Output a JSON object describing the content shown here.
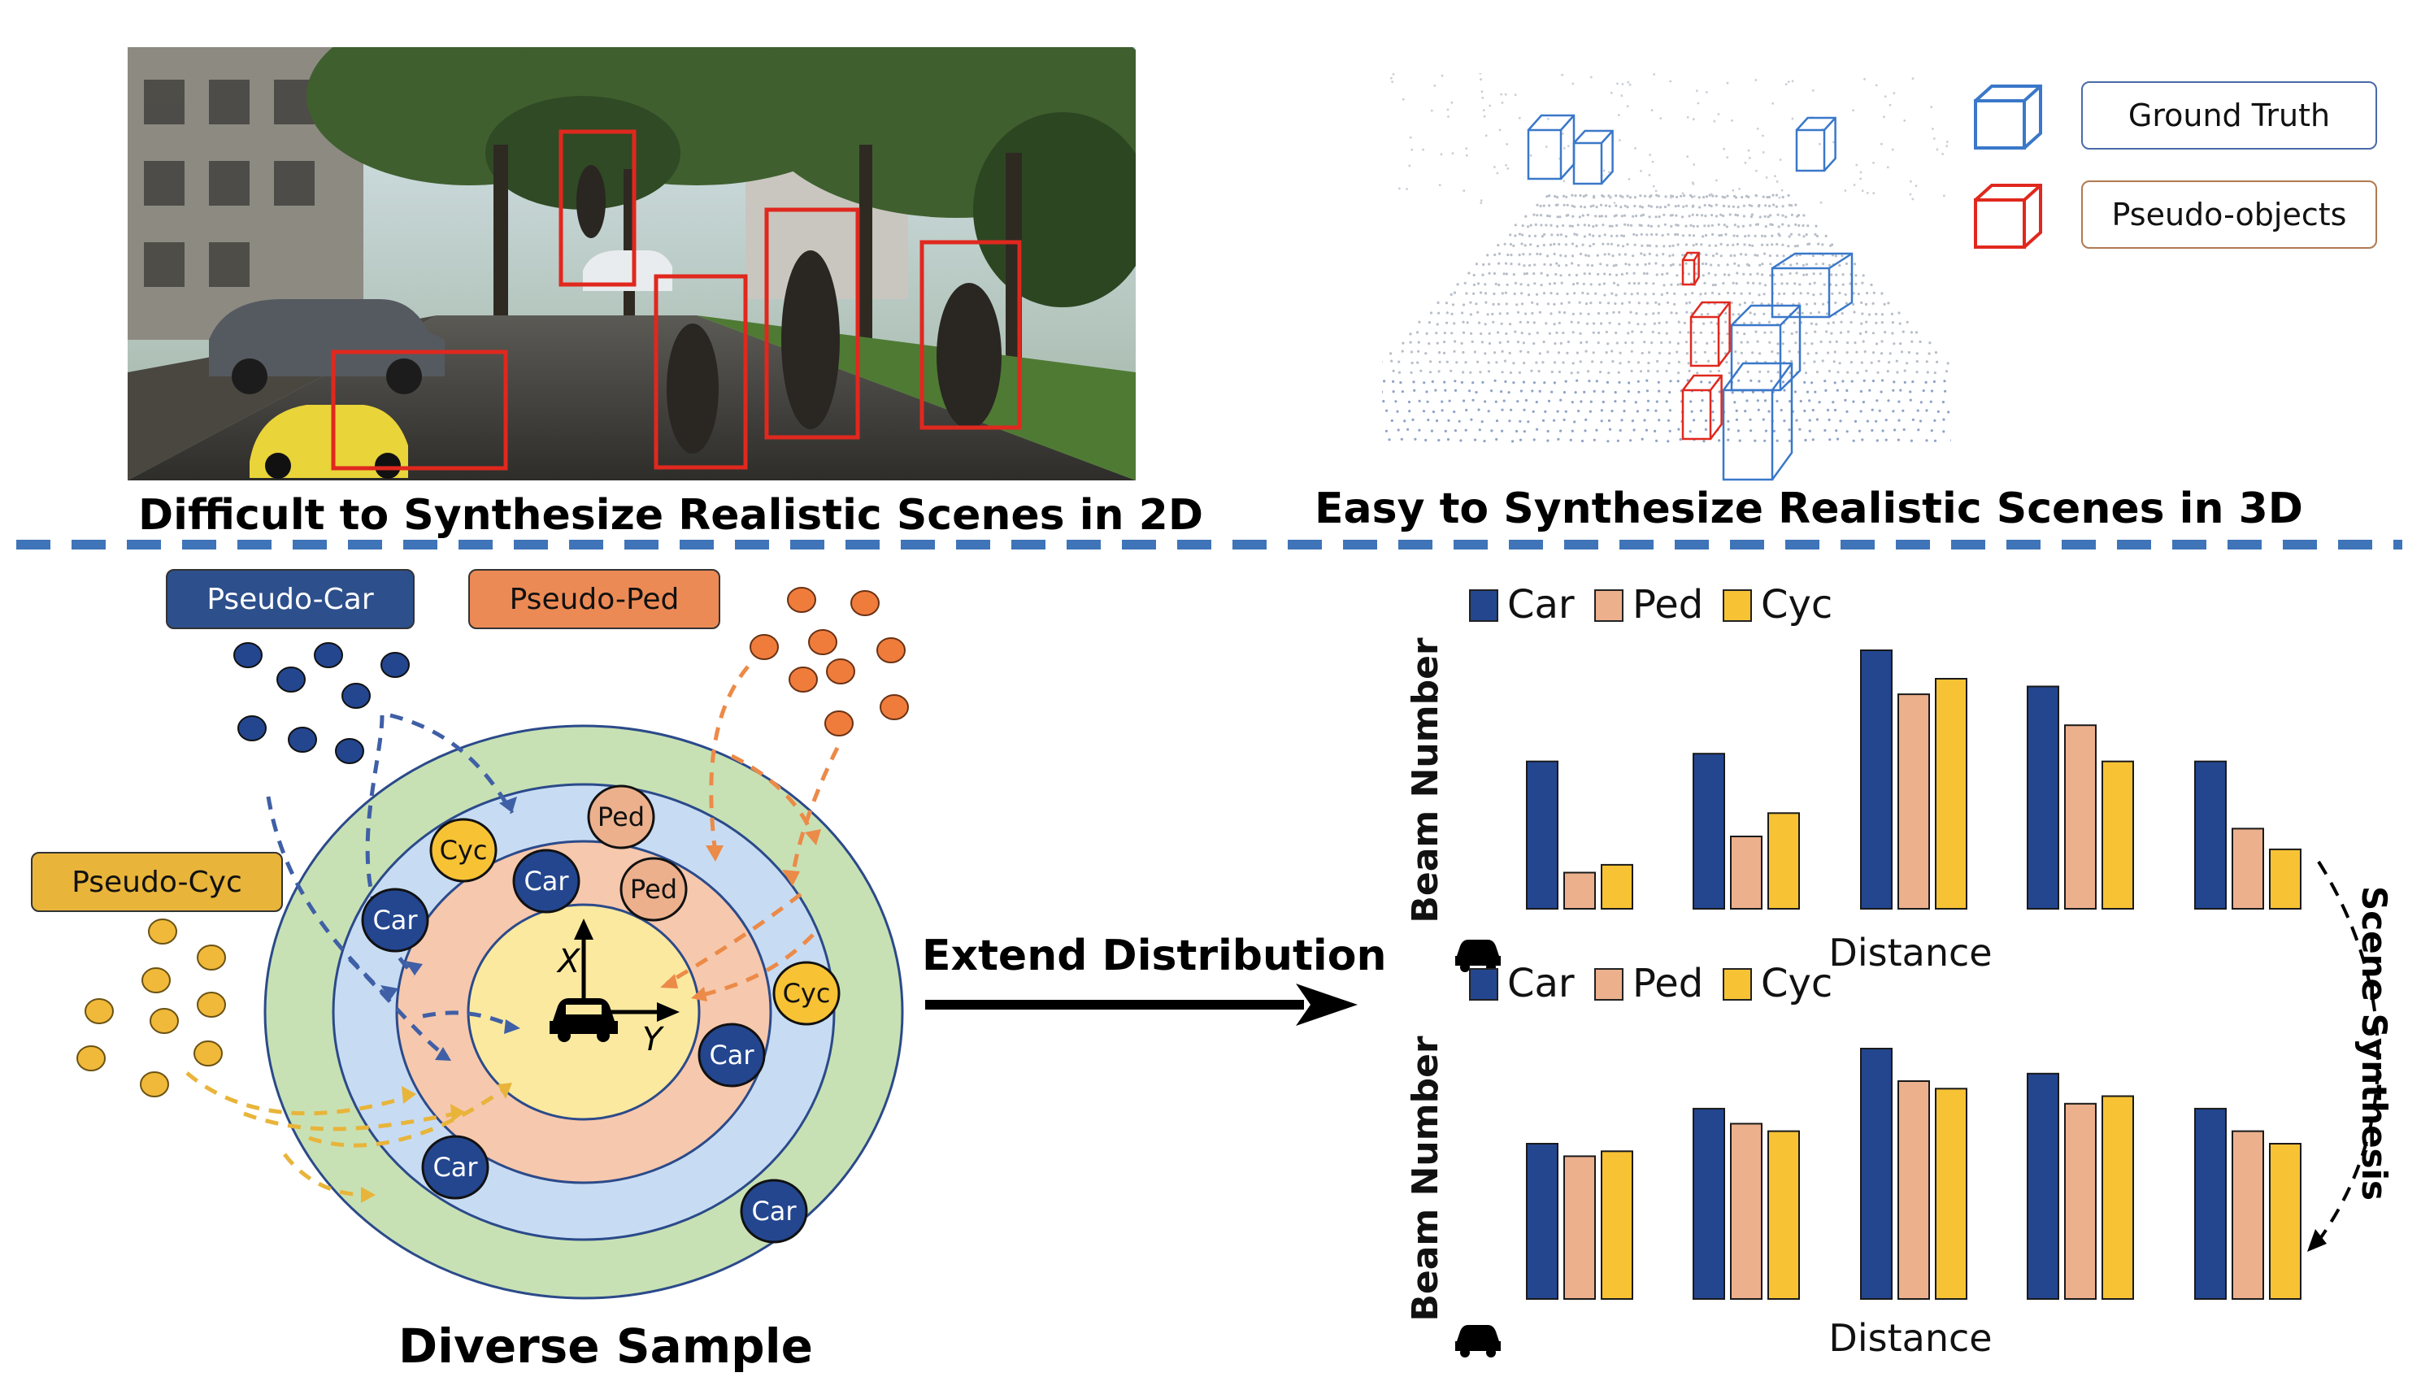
{
  "top": {
    "caption_2d": "Difficult to Synthesize Realistic Scenes in 2D",
    "caption_3d": "Easy to Synthesize Realistic Scenes in 3D",
    "legend": [
      {
        "label": "Ground Truth",
        "color": "#8fa9df",
        "box_color": "#3a78c9"
      },
      {
        "label": "Pseudo-objects",
        "color": "#f2b48c",
        "box_color": "#e0281e"
      }
    ]
  },
  "sample": {
    "tags": {
      "car": "Pseudo-Car",
      "ped": "Pseudo-Ped",
      "cyc": "Pseudo-Cyc"
    },
    "object_labels": {
      "car": "Car",
      "ped": "Ped",
      "cyc": "Cyc"
    },
    "axis_x": "X",
    "axis_y": "Y",
    "caption": "Diverse Sample"
  },
  "arrow_label": "Extend Distribution",
  "side_label": "Scene Synthesis",
  "colors": {
    "car": "#23468f",
    "ped": "#ecb08d",
    "cyc": "#f7c234",
    "ring_outer": "#c8e1b4",
    "ring_mid": "#c7dcf3",
    "ring_inner": "#f6c8ad",
    "core": "#fbe9a0",
    "dot_ped": "#f07c3c",
    "dot_cyc": "#f0b939",
    "dashed_line": "#3f74b8",
    "tag_car": "#2d4f8c",
    "tag_ped": "#ec8a55",
    "tag_cyc": "#e8b43a"
  },
  "chart_data": [
    {
      "type": "bar",
      "legend": [
        "Car",
        "Ped",
        "Cyc"
      ],
      "ylabel": "Beam Number",
      "xlabel": "Distance",
      "categories": [
        "",
        "",
        "",
        "",
        ""
      ],
      "series": [
        {
          "name": "Car",
          "values": [
            0.57,
            0.6,
            1.0,
            0.86,
            0.57
          ]
        },
        {
          "name": "Ped",
          "values": [
            0.14,
            0.28,
            0.83,
            0.71,
            0.31
          ]
        },
        {
          "name": "Cyc",
          "values": [
            0.17,
            0.37,
            0.89,
            0.57,
            0.23
          ]
        }
      ]
    },
    {
      "type": "bar",
      "legend": [
        "Car",
        "Ped",
        "Cyc"
      ],
      "ylabel": "Beam Number",
      "xlabel": "Distance",
      "categories": [
        "",
        "",
        "",
        "",
        ""
      ],
      "series": [
        {
          "name": "Car",
          "values": [
            0.62,
            0.76,
            1.0,
            0.9,
            0.76
          ]
        },
        {
          "name": "Ped",
          "values": [
            0.57,
            0.7,
            0.87,
            0.78,
            0.67
          ]
        },
        {
          "name": "Cyc",
          "values": [
            0.59,
            0.67,
            0.84,
            0.81,
            0.62
          ]
        }
      ]
    }
  ]
}
